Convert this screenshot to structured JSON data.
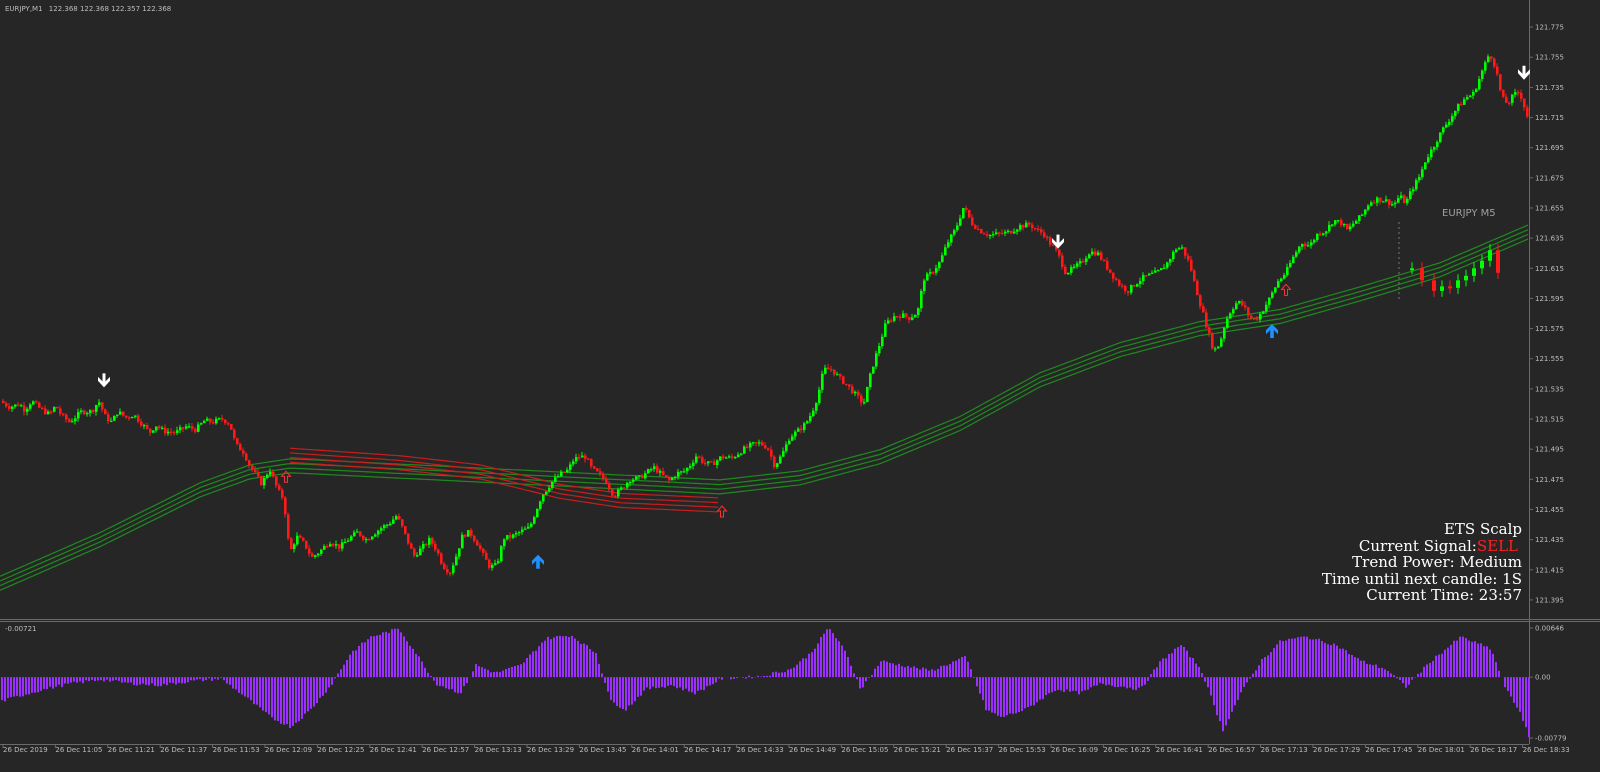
{
  "header": {
    "symbol": "EURJPY,M1",
    "quote": "122.368 122.368 122.357 122.368"
  },
  "colors": {
    "background": "#262626",
    "bull": "#00ff00",
    "bear": "#ff1a1a",
    "ma_green": "#1e8a1e",
    "ma_red": "#c81e1e",
    "histogram": "#9b30ff",
    "arrow_sell": "#ffffff",
    "arrow_buy": "#1e90ff",
    "signal_sell": "#ff2020"
  },
  "info_panel": {
    "title": "ETS Scalp",
    "signal_label": "Current Signal:",
    "signal_value": "SELL",
    "trend_power": "Trend Power: Medium",
    "time_until": "Time until next candle: 1S",
    "current_time": "Current Time: 23:57"
  },
  "mtf_label": "EURJPY M5",
  "chart_data": [
    {
      "type": "candlestick",
      "symbol": "EURJPY",
      "timeframe": "M1",
      "ylim": [
        121.385,
        121.785
      ],
      "y_ticks": [
        "121.775",
        "121.755",
        "121.735",
        "121.715",
        "121.695",
        "121.675",
        "121.655",
        "121.635",
        "121.615",
        "121.595",
        "121.575",
        "121.555",
        "121.535",
        "121.515",
        "121.495",
        "121.475",
        "121.455",
        "121.435",
        "121.415",
        "121.395"
      ],
      "x_ticks": [
        "26 Dec 2019",
        "26 Dec 11:05",
        "26 Dec 11:21",
        "26 Dec 11:37",
        "26 Dec 11:53",
        "26 Dec 12:09",
        "26 Dec 12:25",
        "26 Dec 12:41",
        "26 Dec 12:57",
        "26 Dec 13:13",
        "26 Dec 13:29",
        "26 Dec 13:45",
        "26 Dec 14:01",
        "26 Dec 14:17",
        "26 Dec 14:33",
        "26 Dec 14:49",
        "26 Dec 15:05",
        "26 Dec 15:21",
        "26 Dec 15:37",
        "26 Dec 15:53",
        "26 Dec 16:09",
        "26 Dec 16:25",
        "26 Dec 16:41",
        "26 Dec 16:57",
        "26 Dec 17:13",
        "26 Dec 17:29",
        "26 Dec 17:45",
        "26 Dec 18:01",
        "26 Dec 18:17",
        "26 Dec 18:33"
      ],
      "price_path": [
        [
          0,
          121.527
        ],
        [
          10,
          121.523
        ],
        [
          20,
          121.525
        ],
        [
          25,
          121.521
        ],
        [
          32,
          121.527
        ],
        [
          40,
          121.522
        ],
        [
          50,
          121.518
        ],
        [
          56,
          121.524
        ],
        [
          62,
          121.517
        ],
        [
          70,
          121.513
        ],
        [
          82,
          121.52
        ],
        [
          92,
          121.52
        ],
        [
          99,
          121.527
        ],
        [
          106,
          121.516
        ],
        [
          112,
          121.513
        ],
        [
          118,
          121.52
        ],
        [
          126,
          121.516
        ],
        [
          134,
          121.518
        ],
        [
          142,
          121.512
        ],
        [
          150,
          121.506
        ],
        [
          156,
          121.511
        ],
        [
          164,
          121.507
        ],
        [
          176,
          121.506
        ],
        [
          186,
          121.51
        ],
        [
          196,
          121.508
        ],
        [
          205,
          121.514
        ],
        [
          213,
          121.513
        ],
        [
          222,
          121.515
        ],
        [
          230,
          121.512
        ],
        [
          236,
          121.498
        ],
        [
          244,
          121.493
        ],
        [
          250,
          121.484
        ],
        [
          256,
          121.478
        ],
        [
          262,
          121.472
        ],
        [
          270,
          121.482
        ],
        [
          278,
          121.468
        ],
        [
          284,
          121.462
        ],
        [
          290,
          121.426
        ],
        [
          297,
          121.437
        ],
        [
          305,
          121.432
        ],
        [
          312,
          121.423
        ],
        [
          320,
          121.427
        ],
        [
          330,
          121.434
        ],
        [
          340,
          121.43
        ],
        [
          350,
          121.436
        ],
        [
          358,
          121.44
        ],
        [
          366,
          121.435
        ],
        [
          374,
          121.439
        ],
        [
          382,
          121.443
        ],
        [
          390,
          121.446
        ],
        [
          397,
          121.451
        ],
        [
          402,
          121.444
        ],
        [
          408,
          121.434
        ],
        [
          414,
          121.424
        ],
        [
          420,
          121.428
        ],
        [
          430,
          121.435
        ],
        [
          437,
          121.428
        ],
        [
          443,
          121.418
        ],
        [
          450,
          121.413
        ],
        [
          456,
          121.423
        ],
        [
          463,
          121.438
        ],
        [
          470,
          121.44
        ],
        [
          478,
          121.432
        ],
        [
          484,
          121.424
        ],
        [
          490,
          121.417
        ],
        [
          497,
          121.418
        ],
        [
          504,
          121.436
        ],
        [
          512,
          121.437
        ],
        [
          520,
          121.44
        ],
        [
          530,
          121.443
        ],
        [
          535,
          121.452
        ],
        [
          542,
          121.464
        ],
        [
          552,
          121.473
        ],
        [
          560,
          121.478
        ],
        [
          568,
          121.481
        ],
        [
          574,
          121.488
        ],
        [
          580,
          121.49
        ],
        [
          586,
          121.49
        ],
        [
          592,
          121.482
        ],
        [
          600,
          121.478
        ],
        [
          606,
          121.474
        ],
        [
          614,
          121.464
        ],
        [
          622,
          121.469
        ],
        [
          630,
          121.475
        ],
        [
          640,
          121.476
        ],
        [
          648,
          121.48
        ],
        [
          654,
          121.483
        ],
        [
          662,
          121.478
        ],
        [
          670,
          121.474
        ],
        [
          677,
          121.479
        ],
        [
          684,
          121.48
        ],
        [
          690,
          121.484
        ],
        [
          697,
          121.491
        ],
        [
          704,
          121.486
        ],
        [
          712,
          121.485
        ],
        [
          722,
          121.49
        ],
        [
          732,
          121.489
        ],
        [
          742,
          121.494
        ],
        [
          752,
          121.498
        ],
        [
          760,
          121.499
        ],
        [
          768,
          121.496
        ],
        [
          775,
          121.484
        ],
        [
          782,
          121.491
        ],
        [
          790,
          121.503
        ],
        [
          798,
          121.507
        ],
        [
          806,
          121.512
        ],
        [
          812,
          121.519
        ],
        [
          818,
          121.53
        ],
        [
          824,
          121.548
        ],
        [
          832,
          121.548
        ],
        [
          840,
          121.542
        ],
        [
          848,
          121.537
        ],
        [
          856,
          121.531
        ],
        [
          864,
          121.525
        ],
        [
          872,
          121.548
        ],
        [
          880,
          121.565
        ],
        [
          886,
          121.578
        ],
        [
          894,
          121.583
        ],
        [
          902,
          121.584
        ],
        [
          910,
          121.582
        ],
        [
          918,
          121.586
        ],
        [
          924,
          121.608
        ],
        [
          932,
          121.612
        ],
        [
          940,
          121.619
        ],
        [
          948,
          121.632
        ],
        [
          956,
          121.641
        ],
        [
          964,
          121.656
        ],
        [
          972,
          121.645
        ],
        [
          980,
          121.64
        ],
        [
          990,
          121.637
        ],
        [
          1000,
          121.638
        ],
        [
          1010,
          121.639
        ],
        [
          1020,
          121.643
        ],
        [
          1030,
          121.644
        ],
        [
          1038,
          121.64
        ],
        [
          1044,
          121.638
        ],
        [
          1050,
          121.632
        ],
        [
          1058,
          121.625
        ],
        [
          1066,
          121.612
        ],
        [
          1074,
          121.615
        ],
        [
          1082,
          121.619
        ],
        [
          1090,
          121.626
        ],
        [
          1098,
          121.625
        ],
        [
          1104,
          121.619
        ],
        [
          1112,
          121.611
        ],
        [
          1120,
          121.604
        ],
        [
          1128,
          121.6
        ],
        [
          1136,
          121.605
        ],
        [
          1144,
          121.609
        ],
        [
          1152,
          121.611
        ],
        [
          1160,
          121.613
        ],
        [
          1168,
          121.619
        ],
        [
          1176,
          121.628
        ],
        [
          1182,
          121.629
        ],
        [
          1190,
          121.618
        ],
        [
          1196,
          121.602
        ],
        [
          1202,
          121.588
        ],
        [
          1208,
          121.574
        ],
        [
          1214,
          121.56
        ],
        [
          1220,
          121.565
        ],
        [
          1226,
          121.58
        ],
        [
          1232,
          121.588
        ],
        [
          1238,
          121.593
        ],
        [
          1244,
          121.59
        ],
        [
          1250,
          121.582
        ],
        [
          1256,
          121.581
        ],
        [
          1262,
          121.586
        ],
        [
          1270,
          121.595
        ],
        [
          1278,
          121.606
        ],
        [
          1286,
          121.612
        ],
        [
          1294,
          121.623
        ],
        [
          1302,
          121.632
        ],
        [
          1310,
          121.63
        ],
        [
          1318,
          121.638
        ],
        [
          1326,
          121.64
        ],
        [
          1334,
          121.647
        ],
        [
          1342,
          121.645
        ],
        [
          1348,
          121.64
        ],
        [
          1354,
          121.645
        ],
        [
          1362,
          121.65
        ],
        [
          1370,
          121.659
        ],
        [
          1378,
          121.661
        ],
        [
          1386,
          121.66
        ],
        [
          1394,
          121.657
        ],
        [
          1400,
          121.663
        ],
        [
          1406,
          121.658
        ],
        [
          1412,
          121.667
        ],
        [
          1420,
          121.676
        ],
        [
          1426,
          121.687
        ],
        [
          1434,
          121.696
        ],
        [
          1442,
          121.706
        ],
        [
          1450,
          121.714
        ],
        [
          1458,
          121.722
        ],
        [
          1466,
          121.728
        ],
        [
          1474,
          121.731
        ],
        [
          1482,
          121.745
        ],
        [
          1490,
          121.758
        ],
        [
          1496,
          121.748
        ],
        [
          1502,
          121.728
        ],
        [
          1508,
          121.724
        ],
        [
          1514,
          121.73
        ],
        [
          1520,
          121.732
        ],
        [
          1528,
          121.715
        ]
      ],
      "ma_bands": [
        {
          "color": "green",
          "points": [
            [
              0,
              121.406
            ],
            [
              100,
              121.435
            ],
            [
              200,
              121.468
            ],
            [
              250,
              121.48
            ],
            [
              290,
              121.484
            ],
            [
              720,
              121.47
            ],
            [
              800,
              121.476
            ],
            [
              880,
              121.49
            ],
            [
              960,
              121.512
            ],
            [
              1040,
              121.541
            ],
            [
              1120,
              121.561
            ],
            [
              1200,
              121.575
            ],
            [
              1280,
              121.583
            ],
            [
              1360,
              121.598
            ],
            [
              1440,
              121.614
            ],
            [
              1528,
              121.639
            ]
          ]
        },
        {
          "color": "red",
          "points": [
            [
              290,
              121.491
            ],
            [
              400,
              121.486
            ],
            [
              480,
              121.48
            ],
            [
              560,
              121.467
            ],
            [
              620,
              121.461
            ],
            [
              720,
              121.458
            ]
          ]
        }
      ],
      "signals": [
        {
          "type": "sell",
          "x": 104,
          "price": 121.54
        },
        {
          "type": "buy",
          "x": 538,
          "price": 121.421
        },
        {
          "type": "sell",
          "x": 1058,
          "price": 121.632
        },
        {
          "type": "buy",
          "x": 1272,
          "price": 121.574
        },
        {
          "type": "sell",
          "x": 1524,
          "price": 121.744
        },
        {
          "type": "buy_hollow",
          "x": 722,
          "price": 121.454
        },
        {
          "type": "buy_hollow",
          "x": 286,
          "price": 121.477
        },
        {
          "type": "buy_hollow",
          "x": 1286,
          "price": 121.601
        }
      ]
    },
    {
      "type": "bar",
      "name": "oscillator",
      "ylim": [
        -0.00779,
        0.00646
      ],
      "y_ticks": [
        "0.00646",
        "0.00",
        "-0.00779"
      ],
      "top_left_value": "-0.00721",
      "keyframes": [
        [
          0,
          -0.003
        ],
        [
          40,
          -0.0016
        ],
        [
          70,
          -0.0008
        ],
        [
          100,
          -0.0003
        ],
        [
          130,
          -0.0008
        ],
        [
          160,
          -0.001
        ],
        [
          190,
          -0.0005
        ],
        [
          220,
          -0.0002
        ],
        [
          245,
          -0.0025
        ],
        [
          270,
          -0.005
        ],
        [
          290,
          -0.0062
        ],
        [
          310,
          -0.004
        ],
        [
          330,
          -0.001
        ],
        [
          350,
          0.003
        ],
        [
          370,
          0.005
        ],
        [
          398,
          0.006
        ],
        [
          415,
          0.003
        ],
        [
          435,
          -0.0008
        ],
        [
          460,
          -0.002
        ],
        [
          475,
          0.0015
        ],
        [
          495,
          0.0005
        ],
        [
          520,
          0.0015
        ],
        [
          545,
          0.0048
        ],
        [
          570,
          0.0052
        ],
        [
          595,
          0.003
        ],
        [
          610,
          -0.003
        ],
        [
          625,
          -0.004
        ],
        [
          645,
          -0.0015
        ],
        [
          670,
          -0.001
        ],
        [
          695,
          -0.002
        ],
        [
          720,
          -0.0002
        ],
        [
          760,
          0.0001
        ],
        [
          790,
          0.001
        ],
        [
          810,
          0.003
        ],
        [
          828,
          0.0062
        ],
        [
          845,
          0.003
        ],
        [
          860,
          -0.0015
        ],
        [
          880,
          0.002
        ],
        [
          900,
          0.0015
        ],
        [
          930,
          0.0008
        ],
        [
          965,
          0.0025
        ],
        [
          985,
          -0.004
        ],
        [
          1000,
          -0.005
        ],
        [
          1025,
          -0.004
        ],
        [
          1055,
          -0.0015
        ],
        [
          1080,
          -0.002
        ],
        [
          1100,
          -0.0008
        ],
        [
          1140,
          -0.0015
        ],
        [
          1160,
          0.002
        ],
        [
          1180,
          0.004
        ],
        [
          1200,
          0.001
        ],
        [
          1222,
          -0.0066
        ],
        [
          1240,
          -0.002
        ],
        [
          1260,
          0.002
        ],
        [
          1280,
          0.0045
        ],
        [
          1305,
          0.005
        ],
        [
          1335,
          0.004
        ],
        [
          1360,
          0.002
        ],
        [
          1385,
          0.001
        ],
        [
          1405,
          -0.0012
        ],
        [
          1430,
          0.002
        ],
        [
          1460,
          0.005
        ],
        [
          1490,
          0.0035
        ],
        [
          1505,
          -0.0015
        ],
        [
          1520,
          -0.0045
        ],
        [
          1528,
          -0.0075
        ]
      ]
    }
  ]
}
